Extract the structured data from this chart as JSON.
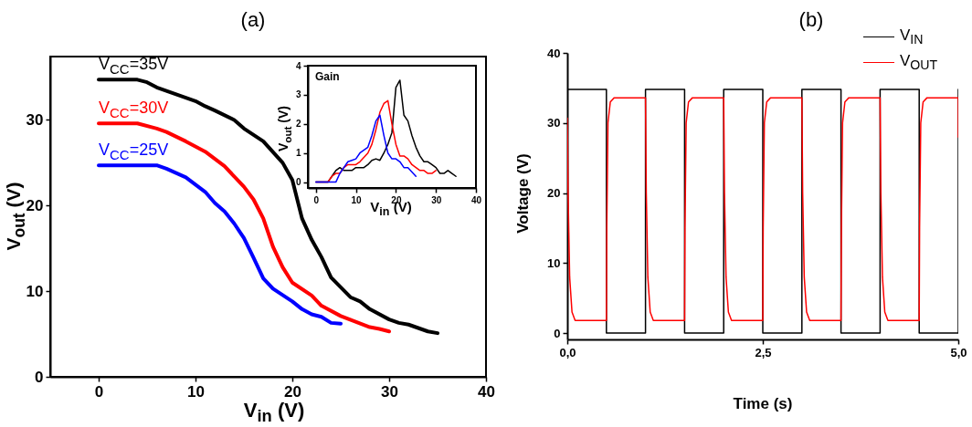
{
  "chart_data": [
    {
      "type": "line",
      "title": "(a)",
      "xlabel": "V$_{in}$ (V)",
      "ylabel": "V$_{out}$ (V)",
      "xlim": [
        -5,
        40
      ],
      "ylim": [
        0,
        37.4
      ],
      "xticks": [
        0,
        10,
        20,
        30,
        40
      ],
      "yticks": [
        0,
        10,
        20,
        30
      ],
      "series": [
        {
          "name": "V$_{CC}$=35V",
          "color": "#000000",
          "x": [
            0,
            4,
            5,
            6,
            8,
            10,
            11,
            12,
            14,
            15,
            17,
            19,
            20,
            21,
            22,
            23,
            24,
            26,
            27,
            28,
            30,
            31,
            32,
            34,
            35
          ],
          "values": [
            34.7,
            34.7,
            34.4,
            33.8,
            33.0,
            32.2,
            31.6,
            31.1,
            30.0,
            29.0,
            27.5,
            25.0,
            23.0,
            18.5,
            16.0,
            14.0,
            11.6,
            9.3,
            8.8,
            7.9,
            6.7,
            6.3,
            6.1,
            5.3,
            5.1
          ]
        },
        {
          "name": "V$_{CC}$=30V",
          "color": "#ff0000",
          "x": [
            0,
            4,
            6,
            7,
            9,
            11,
            13,
            15,
            16,
            17,
            18,
            19,
            20,
            22,
            23,
            25,
            28,
            29,
            30
          ],
          "values": [
            29.6,
            29.6,
            29.0,
            28.6,
            27.5,
            26.3,
            24.6,
            22.2,
            20.7,
            18.5,
            15.2,
            12.8,
            11.0,
            9.5,
            8.3,
            7.1,
            5.8,
            5.6,
            5.3
          ]
        },
        {
          "name": "V$_{CC}$=25V",
          "color": "#0000ff",
          "x": [
            0,
            6,
            7,
            9,
            11,
            12,
            13,
            14,
            15,
            16,
            17,
            18,
            20,
            21,
            22,
            23,
            24,
            25
          ],
          "values": [
            24.7,
            24.7,
            24.3,
            23.3,
            21.6,
            20.3,
            19.3,
            17.9,
            16.2,
            13.9,
            11.5,
            10.3,
            8.8,
            7.9,
            7.3,
            7.0,
            6.3,
            6.2
          ]
        }
      ]
    },
    {
      "type": "line",
      "xlabel": "V$_{in}$ (V)",
      "ylabel": "V$_{out}$ (V)",
      "annotations": [
        "Gain"
      ],
      "xlim": [
        -2,
        40
      ],
      "ylim": [
        -0.2,
        4
      ],
      "xticks": [
        0,
        10,
        20,
        30,
        40
      ],
      "yticks": [
        0,
        1,
        2,
        3,
        4
      ],
      "series": [
        {
          "color": "#000000",
          "x": [
            0,
            3,
            4,
            5,
            6,
            7,
            9,
            10,
            12,
            13,
            14,
            15,
            16,
            17,
            18,
            19,
            20,
            21,
            22,
            23,
            24,
            25,
            26,
            27,
            28,
            29,
            30,
            31,
            32,
            33,
            34,
            35
          ],
          "values": [
            0,
            0,
            0.2,
            0.4,
            0.5,
            0.4,
            0.4,
            0.5,
            0.5,
            0.6,
            0.75,
            0.8,
            0.75,
            1.0,
            1.3,
            1.7,
            3.25,
            3.5,
            2.3,
            2.1,
            1.6,
            1.2,
            0.9,
            0.7,
            0.7,
            0.6,
            0.5,
            0.3,
            0.3,
            0.4,
            0.3,
            0.2
          ]
        },
        {
          "color": "#ff0000",
          "x": [
            0,
            3,
            4,
            5,
            6,
            7,
            8,
            10,
            11,
            13,
            14,
            15,
            16,
            17,
            18,
            19,
            20,
            21,
            22,
            23,
            24,
            26,
            27,
            28,
            29,
            30
          ],
          "values": [
            0,
            0,
            0.2,
            0.3,
            0.3,
            0.5,
            0.6,
            0.6,
            0.7,
            1.0,
            1.3,
            1.8,
            2.4,
            2.7,
            2.8,
            2.0,
            1.3,
            0.9,
            0.9,
            0.8,
            0.6,
            0.4,
            0.4,
            0.3,
            0.3,
            0.4
          ]
        },
        {
          "color": "#0000ff",
          "x": [
            0,
            4,
            5,
            6,
            7,
            8,
            9,
            10,
            11,
            13,
            14,
            15,
            16,
            17,
            18,
            19,
            20,
            21,
            22,
            23,
            24,
            25
          ],
          "values": [
            0,
            0,
            0,
            0.3,
            0.5,
            0.7,
            0.75,
            0.8,
            1.0,
            1.2,
            1.6,
            2.1,
            2.3,
            1.6,
            1.0,
            0.8,
            0.8,
            0.7,
            0.5,
            0.5,
            0.35,
            0.2
          ]
        }
      ]
    },
    {
      "type": "line",
      "title": "(b)",
      "xlabel": "Time (s)",
      "ylabel": "Voltage (V)",
      "xlim": [
        0,
        5
      ],
      "ylim": [
        -0.9,
        40
      ],
      "xticks": [
        {
          "value": 0,
          "label": "0,0"
        },
        {
          "value": 2.5,
          "label": "2,5"
        },
        {
          "value": 5,
          "label": "5,0"
        }
      ],
      "yticks": [
        0,
        10,
        20,
        30,
        40
      ],
      "legend": "top right",
      "series": [
        {
          "name": "V$_{IN}$",
          "color": "#000000",
          "x": [
            0,
            0.5,
            0.5,
            1,
            1,
            1.5,
            1.5,
            2,
            2,
            2.5,
            2.5,
            3,
            3,
            3.5,
            3.5,
            4,
            4,
            4.5,
            4.5,
            5,
            5
          ],
          "values": [
            34.8,
            34.8,
            0,
            0,
            34.8,
            34.8,
            0,
            0,
            34.8,
            34.8,
            0,
            0,
            34.8,
            34.8,
            0,
            0,
            34.8,
            34.8,
            0,
            0,
            34.8
          ]
        },
        {
          "name": "V$_{OUT}$",
          "color": "#ff0000",
          "x": [
            0,
            0.01,
            0.03,
            0.06,
            0.1,
            0.5,
            0.505,
            0.52,
            0.55,
            0.6,
            1,
            1.01,
            1.03,
            1.06,
            1.1,
            1.5,
            1.505,
            1.52,
            1.55,
            1.6,
            2,
            2.01,
            2.03,
            2.06,
            2.1,
            2.5,
            2.505,
            2.52,
            2.55,
            2.6,
            3,
            3.01,
            3.03,
            3.06,
            3.1,
            3.5,
            3.505,
            3.52,
            3.55,
            3.6,
            4,
            4.01,
            4.03,
            4.06,
            4.1,
            4.5,
            4.505,
            4.52,
            4.55,
            4.6,
            5,
            5
          ],
          "values": [
            30.7,
            20,
            8,
            3,
            1.8,
            1.8,
            15,
            30,
            33,
            33.6,
            33.6,
            20,
            8,
            3,
            1.8,
            1.8,
            15,
            30,
            33,
            33.6,
            33.6,
            20,
            8,
            3,
            1.8,
            1.8,
            15,
            30,
            33,
            33.6,
            33.6,
            20,
            8,
            3,
            1.8,
            1.8,
            15,
            30,
            33,
            33.6,
            33.6,
            20,
            8,
            3,
            1.8,
            1.8,
            15,
            30,
            33,
            33.6,
            33.6,
            28
          ]
        }
      ]
    }
  ]
}
